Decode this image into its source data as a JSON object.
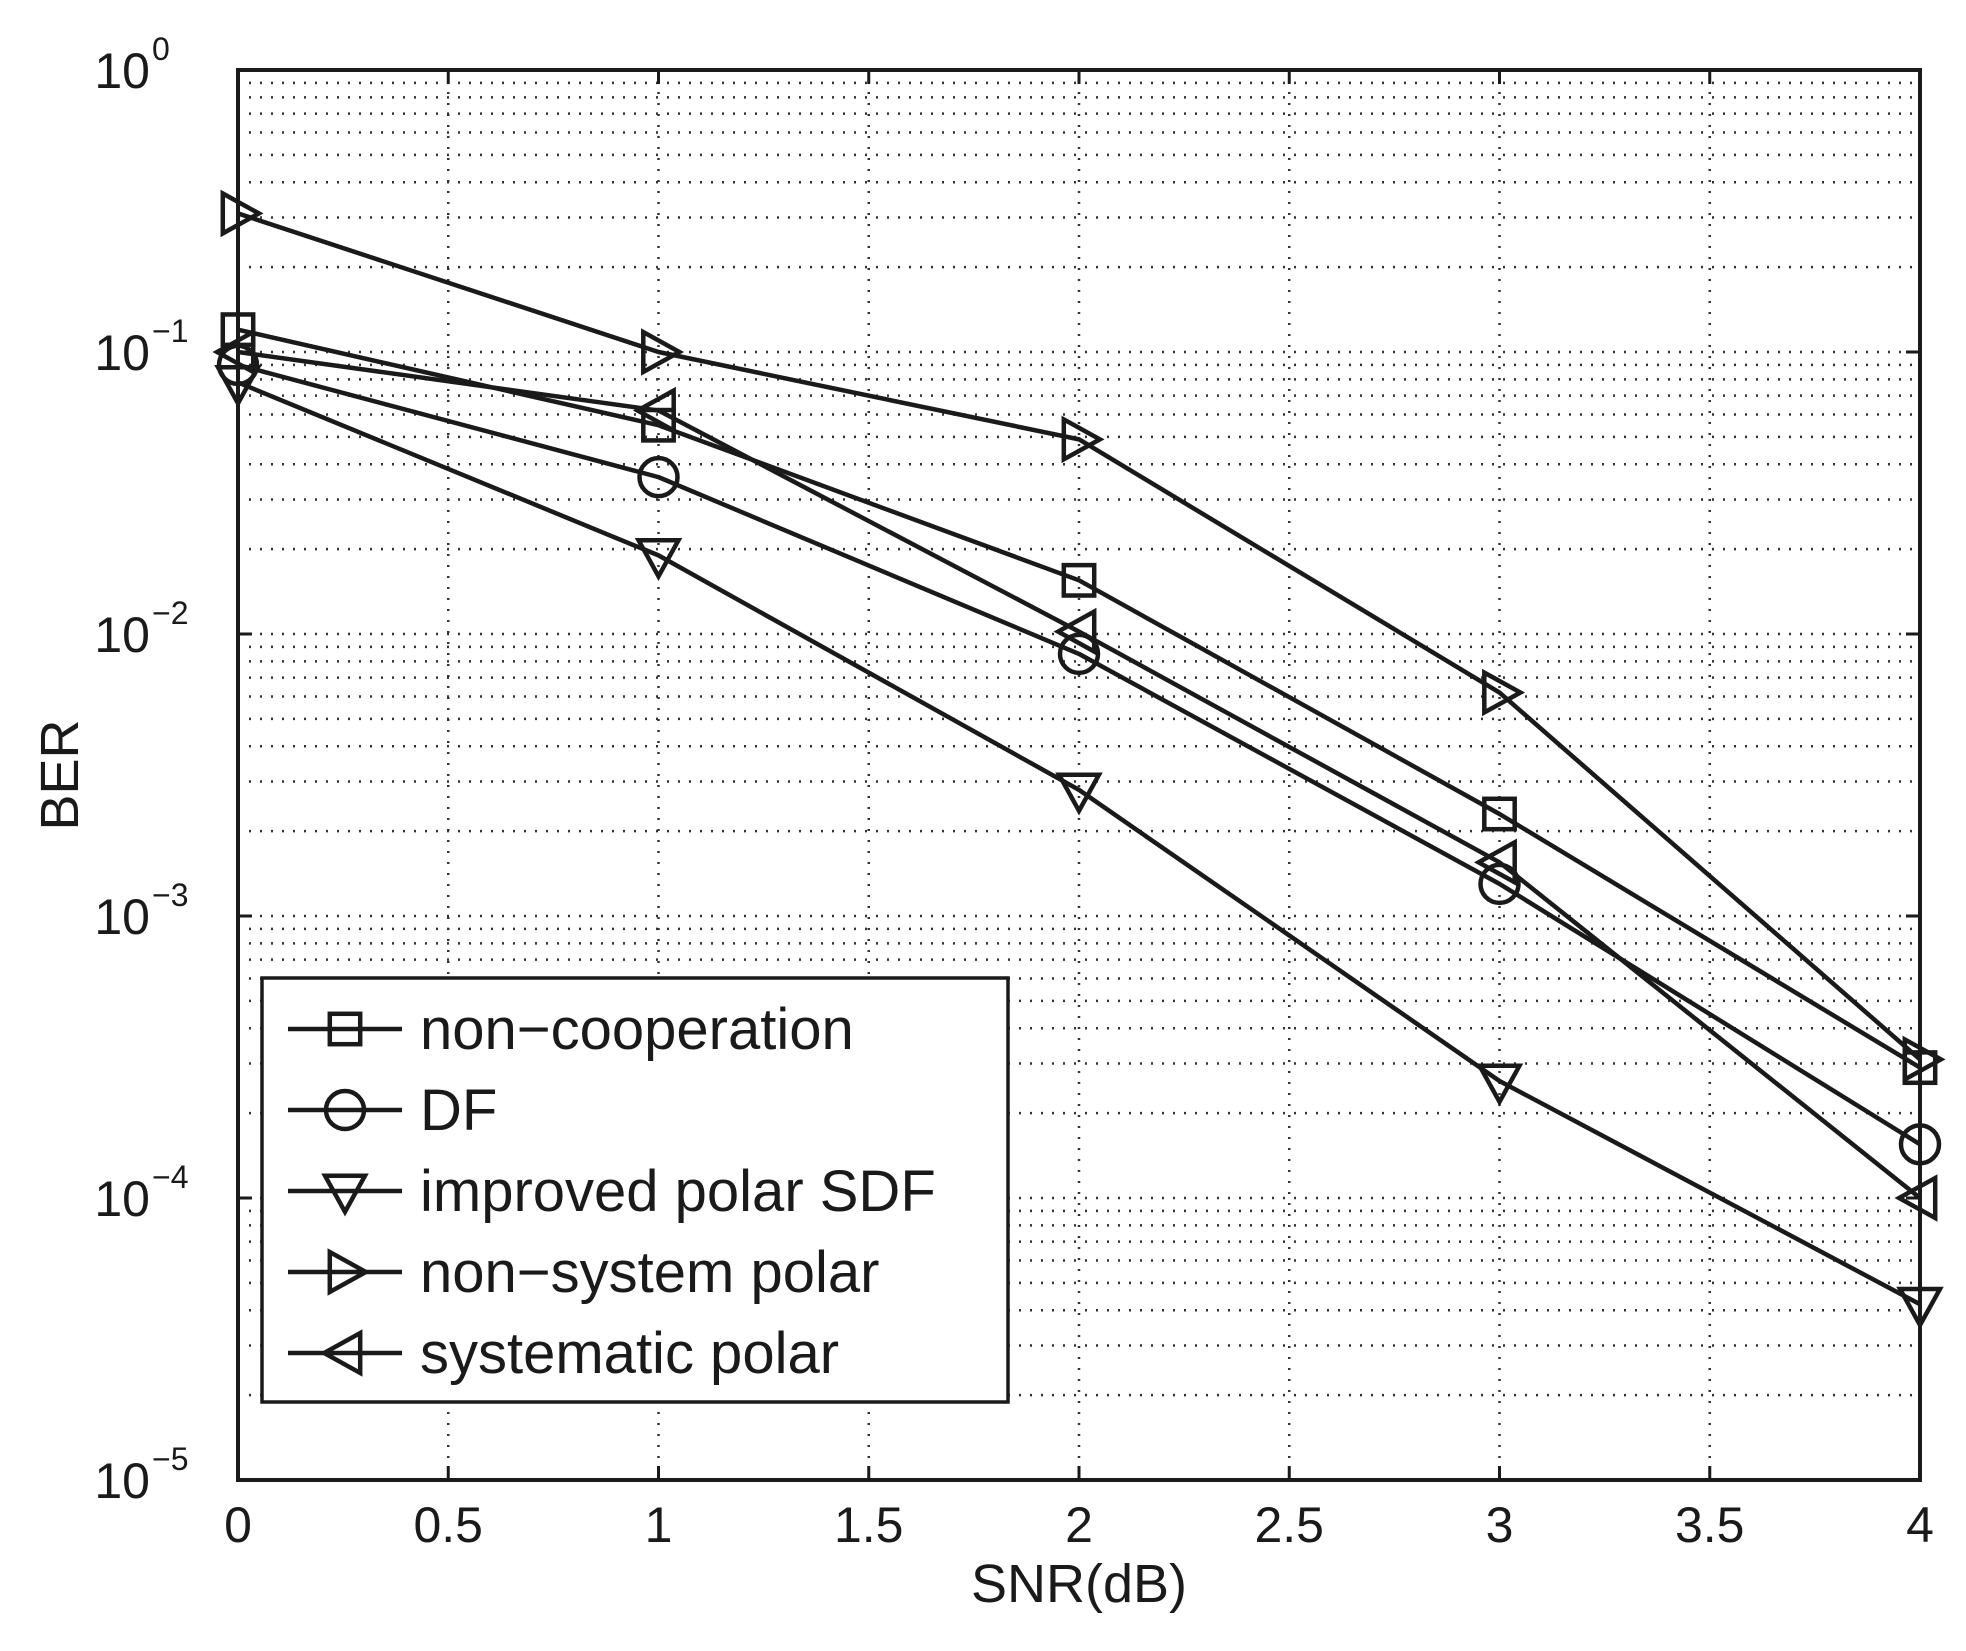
{
  "chart_data": {
    "type": "line",
    "title": "",
    "xlabel": "SNR(dB)",
    "ylabel": "BER",
    "xlim": [
      0,
      4
    ],
    "ylim": [
      1e-05,
      1
    ],
    "yscale": "log",
    "grid": true,
    "legend_position": "bottom-left",
    "x_ticks": [
      "0",
      "0.5",
      "1",
      "1.5",
      "2",
      "2.5",
      "3",
      "3.5",
      "4"
    ],
    "y_ticks": [
      {
        "base": "10",
        "exp": "0"
      },
      {
        "base": "10",
        "exp": "−1"
      },
      {
        "base": "10",
        "exp": "−2"
      },
      {
        "base": "10",
        "exp": "−3"
      },
      {
        "base": "10",
        "exp": "−4"
      },
      {
        "base": "10",
        "exp": "−5"
      }
    ],
    "x": [
      0,
      1,
      2,
      3,
      4
    ],
    "series": [
      {
        "name": "non−cooperation",
        "marker": "square",
        "values": [
          0.12,
          0.055,
          0.0155,
          0.0023,
          0.00029
        ]
      },
      {
        "name": "DF",
        "marker": "circle",
        "values": [
          0.09,
          0.036,
          0.0085,
          0.0013,
          0.000155
        ]
      },
      {
        "name": "improved polar SDF",
        "marker": "triangle-down",
        "values": [
          0.078,
          0.019,
          0.0028,
          0.00026,
          4.2e-05
        ]
      },
      {
        "name": "non−system polar",
        "marker": "triangle-right",
        "values": [
          0.31,
          0.1,
          0.049,
          0.0062,
          0.00031
        ]
      },
      {
        "name": "systematic polar",
        "marker": "triangle-left",
        "values": [
          0.1,
          0.062,
          0.0102,
          0.00155,
          0.0001
        ]
      }
    ]
  }
}
